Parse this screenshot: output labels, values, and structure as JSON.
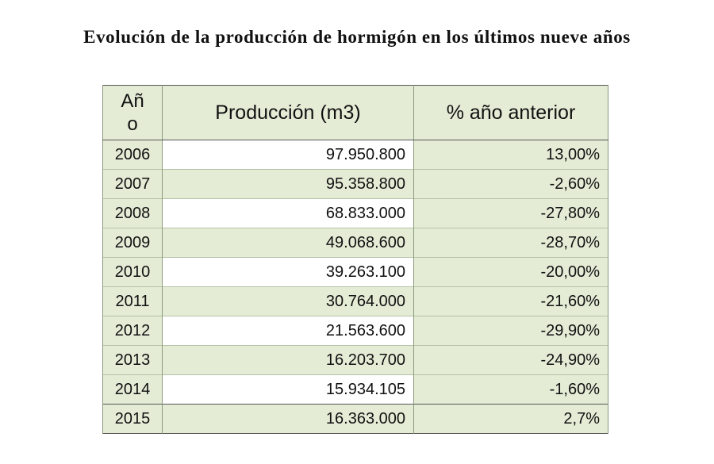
{
  "title": "Evolución de la producción de hormigón en los últimos nueve años",
  "table": {
    "headers": {
      "year": "Año",
      "production": "Producción (m3)",
      "change": "% año anterior"
    },
    "rows": [
      {
        "year": "2006",
        "production": "97.950.800",
        "change": "13,00%"
      },
      {
        "year": "2007",
        "production": "95.358.800",
        "change": "-2,60%"
      },
      {
        "year": "2008",
        "production": "68.833.000",
        "change": "-27,80%"
      },
      {
        "year": "2009",
        "production": "49.068.600",
        "change": "-28,70%"
      },
      {
        "year": "2010",
        "production": "39.263.100",
        "change": "-20,00%"
      },
      {
        "year": "2011",
        "production": "30.764.000",
        "change": "-21,60%"
      },
      {
        "year": "2012",
        "production": "21.563.600",
        "change": "-29,90%"
      },
      {
        "year": "2013",
        "production": "16.203.700",
        "change": "-24,90%"
      },
      {
        "year": "2014",
        "production": "15.934.105",
        "change": "-1,60%"
      },
      {
        "year": "2015",
        "production": "16.363.000",
        "change": "2,7%"
      }
    ]
  }
}
